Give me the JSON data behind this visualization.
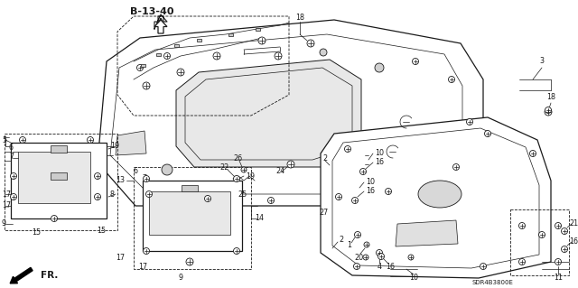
{
  "bg_color": "#ffffff",
  "diagram_label": "B-13-40",
  "reference_code": "SDR4B3800E",
  "fr_label": "FR.",
  "fig_width": 6.4,
  "fig_height": 3.19,
  "dpi": 100,
  "line_color": "#1a1a1a",
  "lw_main": 0.9,
  "lw_thin": 0.5,
  "lw_dash": 0.6
}
